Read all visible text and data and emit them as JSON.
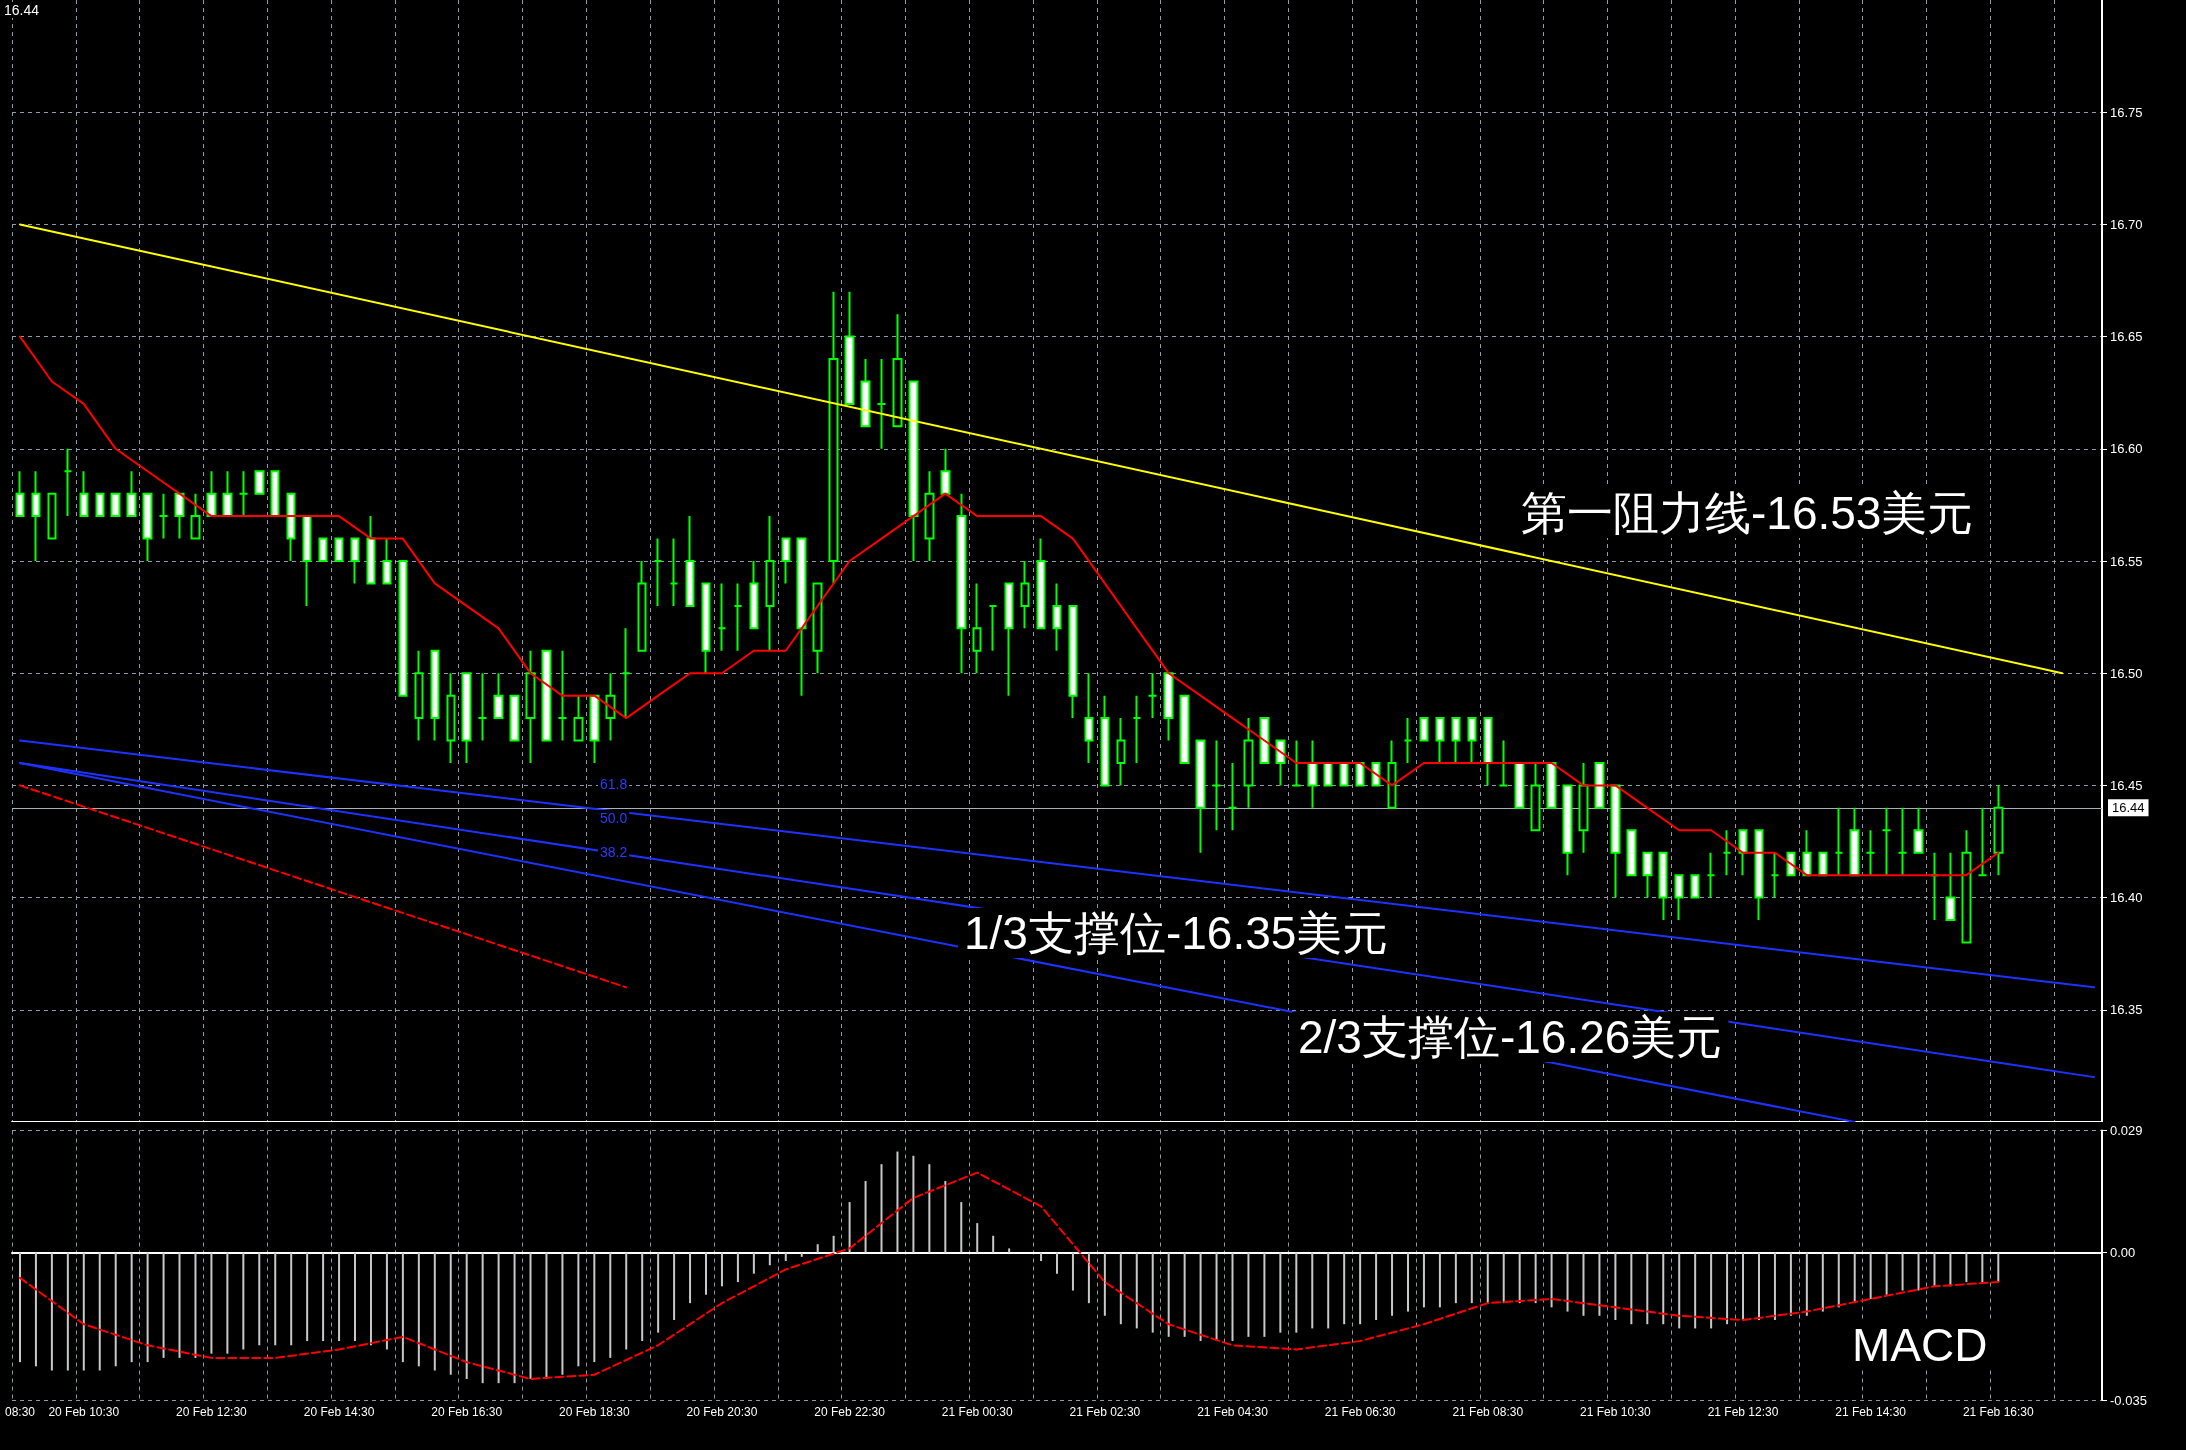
{
  "chart_data": [
    {
      "type": "candlestick",
      "color": "#00ff00",
      "grid": true,
      "tick_labels": "y",
      "categories": [
        null,
        null,
        null,
        null,
        null,
        null,
        null,
        null,
        null,
        null,
        null,
        null,
        null,
        null,
        null,
        null,
        null,
        null,
        null,
        null,
        null,
        null,
        null,
        null,
        null,
        null,
        null,
        null,
        null,
        null,
        null,
        null,
        null,
        null,
        null,
        null,
        null,
        null,
        null,
        null,
        null,
        null,
        null,
        null,
        null,
        null,
        null,
        null,
        null,
        null,
        null,
        null,
        null,
        null,
        null,
        null,
        null,
        null,
        null,
        null,
        null,
        null,
        null,
        null,
        null,
        null,
        null,
        null,
        null,
        null,
        null,
        null,
        null,
        null,
        null,
        null,
        null,
        null,
        null,
        null,
        null,
        null,
        null,
        null,
        null,
        null,
        null,
        null,
        null,
        null,
        null,
        null,
        null,
        null,
        null,
        null,
        null,
        null,
        null,
        null,
        null,
        null,
        null,
        null,
        null,
        null,
        null,
        null,
        null,
        null,
        null,
        null,
        null,
        null,
        null,
        null,
        null,
        null,
        null,
        null,
        null,
        null,
        null,
        null,
        null,
        null,
        null,
        null,
        null,
        null,
        null
      ],
      "ylim": [
        16.3,
        16.8
      ],
      "yticks": [
        16.35,
        {
          "value": 16.4,
          "label": "16.40"
        },
        16.45,
        {
          "value": 16.5,
          "label": "16.50"
        },
        16.55,
        {
          "value": 16.6,
          "label": "16.60"
        },
        16.65,
        {
          "value": 16.7,
          "label": "16.70"
        },
        16.75
      ],
      "ohlc": [
        [
          16.58,
          16.59,
          16.57,
          16.57
        ],
        [
          16.58,
          16.59,
          16.55,
          16.57
        ],
        [
          16.56,
          16.58,
          16.56,
          16.58
        ],
        [
          16.59,
          16.6,
          16.57,
          16.59
        ],
        [
          16.58,
          16.59,
          16.57,
          16.57
        ],
        [
          16.58,
          16.58,
          16.57,
          16.57
        ],
        [
          16.58,
          16.58,
          16.57,
          16.57
        ],
        [
          16.58,
          16.59,
          16.57,
          16.57
        ],
        [
          16.58,
          16.58,
          16.55,
          16.56
        ],
        [
          16.57,
          16.58,
          16.56,
          16.57
        ],
        [
          16.58,
          16.58,
          16.56,
          16.57
        ],
        [
          16.56,
          16.58,
          16.56,
          16.57
        ],
        [
          16.58,
          16.59,
          16.57,
          16.57
        ],
        [
          16.58,
          16.59,
          16.57,
          16.57
        ],
        [
          16.58,
          16.59,
          16.57,
          16.58
        ],
        [
          16.59,
          16.59,
          16.58,
          16.58
        ],
        [
          16.59,
          16.59,
          16.57,
          16.57
        ],
        [
          16.58,
          16.58,
          16.55,
          16.56
        ],
        [
          16.57,
          16.57,
          16.53,
          16.55
        ],
        [
          16.56,
          16.56,
          16.55,
          16.55
        ],
        [
          16.56,
          16.56,
          16.55,
          16.55
        ],
        [
          16.56,
          16.56,
          16.54,
          16.55
        ],
        [
          16.56,
          16.57,
          16.54,
          16.54
        ],
        [
          16.55,
          16.56,
          16.54,
          16.54
        ],
        [
          16.55,
          16.55,
          16.49,
          16.49
        ],
        [
          16.48,
          16.51,
          16.47,
          16.5
        ],
        [
          16.51,
          16.51,
          16.47,
          16.48
        ],
        [
          16.47,
          16.5,
          16.46,
          16.49
        ],
        [
          16.5,
          16.5,
          16.46,
          16.47
        ],
        [
          16.48,
          16.5,
          16.47,
          16.48
        ],
        [
          16.49,
          16.5,
          16.48,
          16.48
        ],
        [
          16.49,
          16.49,
          16.47,
          16.47
        ],
        [
          16.48,
          16.51,
          16.46,
          16.5
        ],
        [
          16.51,
          16.51,
          16.47,
          16.47
        ],
        [
          16.48,
          16.51,
          16.47,
          16.48
        ],
        [
          16.47,
          16.49,
          16.47,
          16.48
        ],
        [
          16.49,
          16.49,
          16.46,
          16.47
        ],
        [
          16.48,
          16.5,
          16.47,
          16.49
        ],
        [
          16.5,
          16.52,
          16.48,
          16.5
        ],
        [
          16.51,
          16.55,
          16.51,
          16.54
        ],
        [
          16.55,
          16.56,
          16.53,
          16.55
        ],
        [
          16.54,
          16.56,
          16.53,
          16.54
        ],
        [
          16.55,
          16.57,
          16.53,
          16.53
        ],
        [
          16.54,
          16.54,
          16.5,
          16.51
        ],
        [
          16.52,
          16.54,
          16.51,
          16.52
        ],
        [
          16.53,
          16.54,
          16.51,
          16.53
        ],
        [
          16.54,
          16.55,
          16.52,
          16.52
        ],
        [
          16.53,
          16.57,
          16.51,
          16.55
        ],
        [
          16.56,
          16.56,
          16.54,
          16.55
        ],
        [
          16.56,
          16.56,
          16.49,
          16.52
        ],
        [
          16.51,
          16.54,
          16.5,
          16.54
        ],
        [
          16.55,
          16.67,
          16.54,
          16.64
        ],
        [
          16.65,
          16.67,
          16.62,
          16.62
        ],
        [
          16.63,
          16.64,
          16.61,
          16.61
        ],
        [
          16.62,
          16.64,
          16.6,
          16.62
        ],
        [
          16.61,
          16.66,
          16.61,
          16.64
        ],
        [
          16.63,
          16.63,
          16.55,
          16.57
        ],
        [
          16.56,
          16.59,
          16.55,
          16.58
        ],
        [
          16.59,
          16.6,
          16.58,
          16.58
        ],
        [
          16.57,
          16.58,
          16.5,
          16.52
        ],
        [
          16.51,
          16.54,
          16.5,
          16.52
        ],
        [
          16.53,
          16.53,
          16.51,
          16.53
        ],
        [
          16.54,
          16.54,
          16.49,
          16.52
        ],
        [
          16.53,
          16.55,
          16.52,
          16.54
        ],
        [
          16.55,
          16.56,
          16.52,
          16.52
        ],
        [
          16.53,
          16.54,
          16.51,
          16.52
        ],
        [
          16.53,
          16.53,
          16.48,
          16.49
        ],
        [
          16.48,
          16.5,
          16.46,
          16.47
        ],
        [
          16.48,
          16.49,
          16.45,
          16.45
        ],
        [
          16.46,
          16.48,
          16.45,
          16.47
        ],
        [
          16.48,
          16.49,
          16.46,
          16.48
        ],
        [
          16.49,
          16.5,
          16.48,
          16.49
        ],
        [
          16.5,
          16.5,
          16.47,
          16.48
        ],
        [
          16.49,
          16.49,
          16.46,
          16.46
        ],
        [
          16.47,
          16.47,
          16.42,
          16.44
        ],
        [
          16.45,
          16.47,
          16.43,
          16.45
        ],
        [
          16.44,
          16.46,
          16.43,
          16.44
        ],
        [
          16.45,
          16.48,
          16.44,
          16.47
        ],
        [
          16.48,
          16.48,
          16.46,
          16.46
        ],
        [
          16.47,
          16.47,
          16.45,
          16.46
        ],
        [
          16.45,
          16.47,
          16.45,
          16.45
        ],
        [
          16.46,
          16.47,
          16.44,
          16.45
        ],
        [
          16.46,
          16.46,
          16.45,
          16.45
        ],
        [
          16.46,
          16.46,
          16.45,
          16.45
        ],
        [
          16.46,
          16.46,
          16.45,
          16.45
        ],
        [
          16.46,
          16.46,
          16.45,
          16.45
        ],
        [
          16.44,
          16.47,
          16.44,
          16.46
        ],
        [
          16.47,
          16.48,
          16.46,
          16.47
        ],
        [
          16.48,
          16.48,
          16.47,
          16.47
        ],
        [
          16.48,
          16.48,
          16.46,
          16.47
        ],
        [
          16.48,
          16.48,
          16.46,
          16.47
        ],
        [
          16.48,
          16.48,
          16.46,
          16.47
        ],
        [
          16.48,
          16.48,
          16.45,
          16.46
        ],
        [
          16.45,
          16.47,
          16.45,
          16.45
        ],
        [
          16.46,
          16.46,
          16.44,
          16.44
        ],
        [
          16.43,
          16.46,
          16.43,
          16.45
        ],
        [
          16.46,
          16.46,
          16.44,
          16.44
        ],
        [
          16.45,
          16.45,
          16.41,
          16.42
        ],
        [
          16.43,
          16.46,
          16.42,
          16.45
        ],
        [
          16.46,
          16.46,
          16.44,
          16.44
        ],
        [
          16.45,
          16.45,
          16.4,
          16.42
        ],
        [
          16.43,
          16.43,
          16.41,
          16.41
        ],
        [
          16.42,
          16.42,
          16.4,
          16.41
        ],
        [
          16.42,
          16.42,
          16.39,
          16.4
        ],
        [
          16.41,
          16.41,
          16.39,
          16.4
        ],
        [
          16.41,
          16.41,
          16.4,
          16.4
        ],
        [
          16.41,
          16.42,
          16.4,
          16.41
        ],
        [
          16.42,
          16.43,
          16.41,
          16.42
        ],
        [
          16.43,
          16.43,
          16.41,
          16.42
        ],
        [
          16.43,
          16.43,
          16.39,
          16.4
        ],
        [
          16.41,
          16.42,
          16.4,
          16.41
        ],
        [
          16.42,
          16.42,
          16.41,
          16.41
        ],
        [
          16.42,
          16.43,
          16.41,
          16.41
        ],
        [
          16.42,
          16.42,
          16.41,
          16.41
        ],
        [
          16.42,
          16.44,
          16.41,
          16.42
        ],
        [
          16.43,
          16.44,
          16.41,
          16.41
        ],
        [
          16.42,
          16.43,
          16.41,
          16.42
        ],
        [
          16.43,
          16.44,
          16.41,
          16.43
        ],
        [
          16.42,
          16.44,
          16.41,
          16.42
        ],
        [
          16.43,
          16.44,
          16.42,
          16.42
        ],
        [
          16.41,
          16.42,
          16.39,
          16.41
        ],
        [
          16.4,
          16.42,
          16.39,
          16.39
        ],
        [
          16.38,
          16.43,
          16.38,
          16.42
        ],
        [
          16.41,
          16.44,
          16.41,
          16.41
        ],
        [
          16.42,
          16.45,
          16.41,
          16.44
        ],
        null,
        null,
        null,
        null,
        null,
        null
      ],
      "series": [
        {
          "type": "line",
          "color": "#ffff00",
          "values": [
            16.7,
            null,
            null,
            null,
            null,
            null,
            null,
            null,
            null,
            null,
            null,
            null,
            null,
            null,
            null,
            null,
            null,
            null,
            null,
            null,
            null,
            null,
            null,
            null,
            null,
            null,
            null,
            null,
            null,
            null,
            null,
            null,
            null,
            null,
            null,
            null,
            null,
            null,
            null,
            null,
            null,
            null,
            null,
            null,
            null,
            null,
            null,
            null,
            null,
            null,
            null,
            null,
            null,
            null,
            null,
            null,
            null,
            null,
            null,
            null,
            null,
            null,
            null,
            null,
            null,
            null,
            null,
            null,
            null,
            null,
            null,
            null,
            null,
            null,
            null,
            null,
            null,
            null,
            null,
            null,
            null,
            null,
            null,
            null,
            null,
            null,
            null,
            null,
            null,
            null,
            null,
            null,
            null,
            null,
            null,
            null,
            null,
            null,
            null,
            null,
            null,
            null,
            null,
            null,
            null,
            null,
            null,
            null,
            null,
            null,
            null,
            null,
            null,
            null,
            null,
            null,
            null,
            null,
            null,
            null,
            null,
            null,
            null,
            null,
            null,
            null,
            null,
            null,
            16.5,
            null,
            null
          ]
        },
        {
          "type": "line",
          "color": "#ff0000",
          "values": [
            16.65,
            null,
            16.63,
            null,
            16.62,
            null,
            16.6,
            null,
            16.59,
            null,
            16.58,
            null,
            16.57,
            null,
            16.57,
            null,
            16.57,
            null,
            16.57,
            null,
            16.57,
            null,
            16.56,
            null,
            16.56,
            null,
            16.54,
            null,
            16.53,
            null,
            16.52,
            null,
            16.5,
            null,
            16.49,
            null,
            16.49,
            null,
            16.48,
            null,
            16.49,
            null,
            16.5,
            null,
            16.5,
            null,
            16.51,
            null,
            16.51,
            null,
            16.53,
            null,
            16.55,
            null,
            16.56,
            null,
            16.57,
            null,
            16.58,
            null,
            16.57,
            null,
            16.57,
            null,
            16.57,
            null,
            16.56,
            null,
            16.54,
            null,
            16.52,
            null,
            16.5,
            null,
            16.49,
            null,
            16.48,
            null,
            16.47,
            null,
            16.46,
            null,
            16.46,
            null,
            16.46,
            null,
            16.45,
            null,
            16.46,
            null,
            16.46,
            null,
            16.46,
            null,
            16.46,
            null,
            16.46,
            null,
            16.45,
            null,
            16.45,
            null,
            16.44,
            null,
            16.43,
            null,
            16.43,
            null,
            16.42,
            null,
            16.42,
            null,
            16.41,
            null,
            16.41,
            null,
            16.41,
            null,
            16.41,
            null,
            16.41,
            null,
            16.41,
            null,
            16.42,
            null,
            null,
            null,
            null,
            null,
            null
          ]
        },
        {
          "type": "line",
          "color": "#ff0000",
          "line_style": "dashed",
          "values": [
            16.45,
            null,
            null,
            null,
            null,
            null,
            null,
            null,
            null,
            null,
            null,
            null,
            null,
            null,
            null,
            null,
            null,
            null,
            null,
            null,
            null,
            null,
            null,
            null,
            null,
            null,
            null,
            null,
            null,
            null,
            null,
            null,
            null,
            null,
            null,
            null,
            null,
            null,
            16.36,
            null,
            null,
            null,
            null,
            null,
            null,
            null,
            null,
            null,
            null,
            null,
            null,
            null,
            null,
            null,
            null,
            null,
            null,
            null,
            null,
            null,
            null,
            null,
            null,
            null,
            null,
            null,
            null,
            null,
            null,
            null,
            null,
            null,
            null,
            null,
            null,
            null,
            null,
            null,
            null,
            null,
            null,
            null,
            null,
            null,
            null,
            null,
            null,
            null,
            null,
            null,
            null,
            null,
            null,
            null,
            null,
            null,
            null,
            null,
            null,
            null,
            null,
            null,
            null,
            null,
            null,
            null,
            null,
            null,
            null,
            null,
            null,
            null,
            null,
            null,
            null,
            null,
            null,
            null,
            null,
            null,
            null,
            null,
            null,
            null,
            null,
            null,
            null,
            null,
            null,
            null,
            null
          ]
        },
        {
          "type": "line",
          "color": "#1e32ff",
          "values": [
            16.47,
            null,
            null,
            null,
            null,
            null,
            null,
            null,
            null,
            null,
            null,
            null,
            null,
            null,
            null,
            null,
            null,
            null,
            null,
            null,
            null,
            null,
            null,
            null,
            null,
            null,
            null,
            null,
            null,
            null,
            null,
            null,
            null,
            null,
            null,
            null,
            null,
            null,
            null,
            null,
            null,
            null,
            null,
            null,
            null,
            null,
            null,
            null,
            null,
            null,
            null,
            null,
            null,
            null,
            null,
            null,
            null,
            null,
            null,
            null,
            null,
            null,
            null,
            null,
            null,
            null,
            null,
            null,
            null,
            null,
            null,
            null,
            null,
            null,
            null,
            null,
            null,
            null,
            null,
            null,
            null,
            null,
            null,
            null,
            null,
            null,
            null,
            null,
            null,
            null,
            null,
            null,
            null,
            null,
            null,
            null,
            null,
            null,
            null,
            null,
            null,
            null,
            null,
            null,
            null,
            null,
            null,
            null,
            null,
            null,
            null,
            null,
            null,
            null,
            null,
            null,
            null,
            null,
            null,
            null,
            null,
            null,
            null,
            null,
            null,
            null,
            null,
            null,
            null,
            null,
            16.36
          ]
        },
        {
          "type": "line",
          "color": "#1e32ff",
          "values": [
            16.46,
            null,
            null,
            null,
            null,
            null,
            null,
            null,
            null,
            null,
            null,
            null,
            null,
            null,
            null,
            null,
            null,
            null,
            null,
            null,
            null,
            null,
            null,
            null,
            null,
            null,
            null,
            null,
            null,
            null,
            null,
            null,
            null,
            null,
            null,
            null,
            null,
            null,
            null,
            null,
            null,
            null,
            null,
            null,
            null,
            null,
            null,
            null,
            null,
            null,
            null,
            null,
            null,
            null,
            null,
            null,
            null,
            null,
            null,
            null,
            null,
            null,
            null,
            null,
            null,
            null,
            null,
            null,
            null,
            null,
            null,
            null,
            null,
            null,
            null,
            null,
            null,
            null,
            null,
            null,
            null,
            null,
            null,
            null,
            null,
            null,
            null,
            null,
            null,
            null,
            null,
            null,
            null,
            null,
            null,
            null,
            null,
            null,
            null,
            null,
            null,
            null,
            null,
            null,
            null,
            null,
            null,
            null,
            null,
            null,
            null,
            null,
            null,
            null,
            null,
            null,
            null,
            null,
            null,
            null,
            null,
            null,
            null,
            null,
            null,
            null,
            null,
            null,
            null,
            null,
            16.32
          ]
        },
        {
          "type": "line",
          "color": "#1e32ff",
          "values": [
            16.46,
            null,
            null,
            null,
            null,
            null,
            null,
            null,
            null,
            null,
            null,
            null,
            null,
            null,
            null,
            null,
            null,
            null,
            null,
            null,
            null,
            null,
            null,
            null,
            null,
            null,
            null,
            null,
            null,
            null,
            null,
            null,
            null,
            null,
            null,
            null,
            null,
            null,
            null,
            null,
            null,
            null,
            null,
            null,
            null,
            null,
            null,
            null,
            null,
            null,
            null,
            null,
            null,
            null,
            null,
            null,
            null,
            null,
            null,
            null,
            null,
            null,
            null,
            null,
            null,
            null,
            null,
            null,
            null,
            null,
            null,
            null,
            null,
            null,
            null,
            null,
            null,
            null,
            null,
            null,
            null,
            null,
            null,
            null,
            null,
            null,
            null,
            null,
            null,
            null,
            null,
            null,
            null,
            null,
            null,
            null,
            null,
            null,
            null,
            null,
            null,
            null,
            null,
            null,
            null,
            null,
            null,
            null,
            null,
            null,
            null,
            null,
            null,
            null,
            null,
            16.3,
            null,
            null,
            null,
            null,
            null,
            null,
            null,
            null,
            null,
            null,
            null,
            null,
            null,
            null,
            null
          ]
        }
      ],
      "ref_lines": [
        {
          "axis": "y",
          "value": 16.44,
          "label": "16.44",
          "color": "#a8b0b8"
        }
      ],
      "annotations": [
        "16.44",
        "61.8",
        "50.0",
        "38.2",
        "第一阻力线-16.53美元",
        "1/3支撑位-16.35美元",
        "2/3支撑位-16.26美元"
      ]
    },
    {
      "type": "bar",
      "grid": true,
      "categories": [
        "08:30",
        null,
        null,
        null,
        "20 Feb 10:30",
        null,
        null,
        null,
        null,
        null,
        null,
        null,
        "20 Feb 12:30",
        null,
        null,
        null,
        null,
        null,
        null,
        null,
        "20 Feb 14:30",
        null,
        null,
        null,
        null,
        null,
        null,
        null,
        "20 Feb 16:30",
        null,
        null,
        null,
        null,
        null,
        null,
        null,
        "20 Feb 18:30",
        null,
        null,
        null,
        null,
        null,
        null,
        null,
        "20 Feb 20:30",
        null,
        null,
        null,
        null,
        null,
        null,
        null,
        "20 Feb 22:30",
        null,
        null,
        null,
        null,
        null,
        null,
        null,
        "21 Feb 00:30",
        null,
        null,
        null,
        null,
        null,
        null,
        null,
        "21 Feb 02:30",
        null,
        null,
        null,
        null,
        null,
        null,
        null,
        "21 Feb 04:30",
        null,
        null,
        null,
        null,
        null,
        null,
        null,
        "21 Feb 06:30",
        null,
        null,
        null,
        null,
        null,
        null,
        null,
        "21 Feb 08:30",
        null,
        null,
        null,
        null,
        null,
        null,
        null,
        "21 Feb 10:30",
        null,
        null,
        null,
        null,
        null,
        null,
        null,
        "21 Feb 12:30",
        null,
        null,
        null,
        null,
        null,
        null,
        null,
        "21 Feb 14:30",
        null,
        null,
        null,
        null,
        null,
        null,
        null,
        "21 Feb 16:30",
        null,
        null,
        null,
        null,
        null,
        null
      ],
      "ylim": [
        -0.035,
        0.029
      ],
      "yticks": [
        -0.035,
        {
          "value": 0,
          "label": "0.00"
        },
        0.029
      ],
      "series": [
        {
          "type": "bar",
          "color": "#c8c8c8",
          "values": [
            -0.026,
            -0.027,
            -0.028,
            -0.028,
            -0.028,
            -0.028,
            -0.027,
            -0.026,
            -0.026,
            -0.025,
            -0.025,
            -0.025,
            -0.024,
            -0.024,
            -0.023,
            -0.022,
            -0.022,
            -0.022,
            -0.021,
            -0.021,
            -0.021,
            -0.021,
            -0.022,
            -0.023,
            -0.026,
            -0.027,
            -0.028,
            -0.029,
            -0.03,
            -0.031,
            -0.031,
            -0.031,
            -0.03,
            -0.03,
            -0.029,
            -0.027,
            -0.026,
            -0.025,
            -0.023,
            -0.021,
            -0.019,
            -0.016,
            -0.012,
            -0.01,
            -0.008,
            -0.007,
            -0.005,
            -0.003,
            -0.002,
            -0.001,
            0.002,
            0.004,
            0.012,
            0.017,
            0.021,
            0.024,
            0.023,
            0.021,
            0.017,
            0.012,
            0.007,
            0.004,
            0.001,
            0,
            -0.002,
            -0.005,
            -0.009,
            -0.012,
            -0.015,
            -0.017,
            -0.018,
            -0.019,
            -0.02,
            -0.02,
            -0.021,
            -0.021,
            -0.021,
            -0.02,
            -0.02,
            -0.019,
            -0.019,
            -0.018,
            -0.018,
            -0.017,
            -0.017,
            -0.016,
            -0.015,
            -0.014,
            -0.013,
            -0.013,
            -0.012,
            -0.012,
            -0.012,
            -0.012,
            -0.012,
            -0.012,
            -0.013,
            -0.014,
            -0.015,
            -0.015,
            -0.016,
            -0.017,
            -0.017,
            -0.017,
            -0.018,
            -0.018,
            -0.018,
            -0.017,
            -0.016,
            -0.016,
            -0.016,
            -0.015,
            -0.015,
            -0.014,
            -0.013,
            -0.012,
            -0.011,
            -0.01,
            -0.009,
            -0.009,
            -0.008,
            -0.008,
            -0.007,
            -0.007,
            -0.007,
            null,
            null,
            null,
            null,
            null,
            null
          ]
        },
        {
          "type": "line",
          "color": "#ff0000",
          "line_style": "dashed",
          "values": [
            -0.006,
            null,
            null,
            null,
            -0.017,
            null,
            null,
            null,
            -0.022,
            null,
            null,
            null,
            -0.025,
            null,
            null,
            null,
            -0.025,
            null,
            null,
            null,
            -0.023,
            null,
            null,
            null,
            -0.02,
            null,
            null,
            null,
            -0.026,
            null,
            null,
            null,
            -0.03,
            null,
            null,
            null,
            -0.029,
            null,
            null,
            null,
            -0.022,
            null,
            null,
            null,
            -0.012,
            null,
            null,
            null,
            -0.004,
            null,
            null,
            null,
            0.001,
            null,
            null,
            null,
            0.013,
            null,
            null,
            null,
            0.019,
            null,
            null,
            null,
            0.011,
            null,
            null,
            null,
            -0.007,
            null,
            null,
            null,
            -0.017,
            null,
            null,
            null,
            -0.022,
            null,
            null,
            null,
            -0.023,
            null,
            null,
            null,
            -0.021,
            null,
            null,
            null,
            -0.017,
            null,
            null,
            null,
            -0.012,
            null,
            null,
            null,
            -0.011,
            null,
            null,
            null,
            -0.013,
            null,
            null,
            null,
            -0.015,
            null,
            null,
            null,
            -0.016,
            null,
            null,
            null,
            -0.014,
            null,
            null,
            null,
            -0.011,
            null,
            null,
            null,
            -0.008,
            null,
            null,
            null,
            -0.007,
            null,
            null,
            null,
            null,
            null,
            null
          ]
        }
      ],
      "annotations": [
        "MACD"
      ]
    }
  ]
}
